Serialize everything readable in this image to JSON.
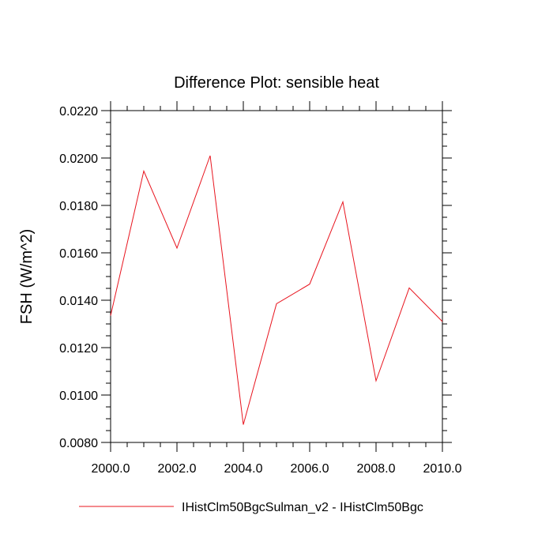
{
  "chart_data": {
    "type": "line",
    "title": "Difference Plot: sensible heat",
    "ylabel": "FSH  (W/m^2)",
    "xlabel": "",
    "xlim": [
      2000,
      2010
    ],
    "ylim": [
      0.008,
      0.022
    ],
    "x_ticks": [
      2000,
      2002,
      2004,
      2006,
      2008,
      2010
    ],
    "x_tick_labels": [
      "2000.0",
      "2002.0",
      "2004.0",
      "2006.0",
      "2008.0",
      "2010.0"
    ],
    "y_ticks": [
      0.008,
      0.01,
      0.012,
      0.014,
      0.016,
      0.018,
      0.02,
      0.022
    ],
    "y_tick_labels": [
      "0.0080",
      "0.0100",
      "0.0120",
      "0.0140",
      "0.0160",
      "0.0180",
      "0.0200",
      "0.0220"
    ],
    "grid": false,
    "legend_position": "bottom",
    "series": [
      {
        "name": "IHistClm50BgcSulman_v2 - IHistClm50Bgc",
        "color": "#e8141e",
        "x": [
          2000,
          2001,
          2002,
          2003,
          2004,
          2005,
          2006,
          2007,
          2008,
          2009,
          2010
        ],
        "y": [
          0.01335,
          0.01945,
          0.0162,
          0.0201,
          0.00875,
          0.01385,
          0.01468,
          0.01815,
          0.0106,
          0.01452,
          0.0131
        ]
      }
    ]
  }
}
